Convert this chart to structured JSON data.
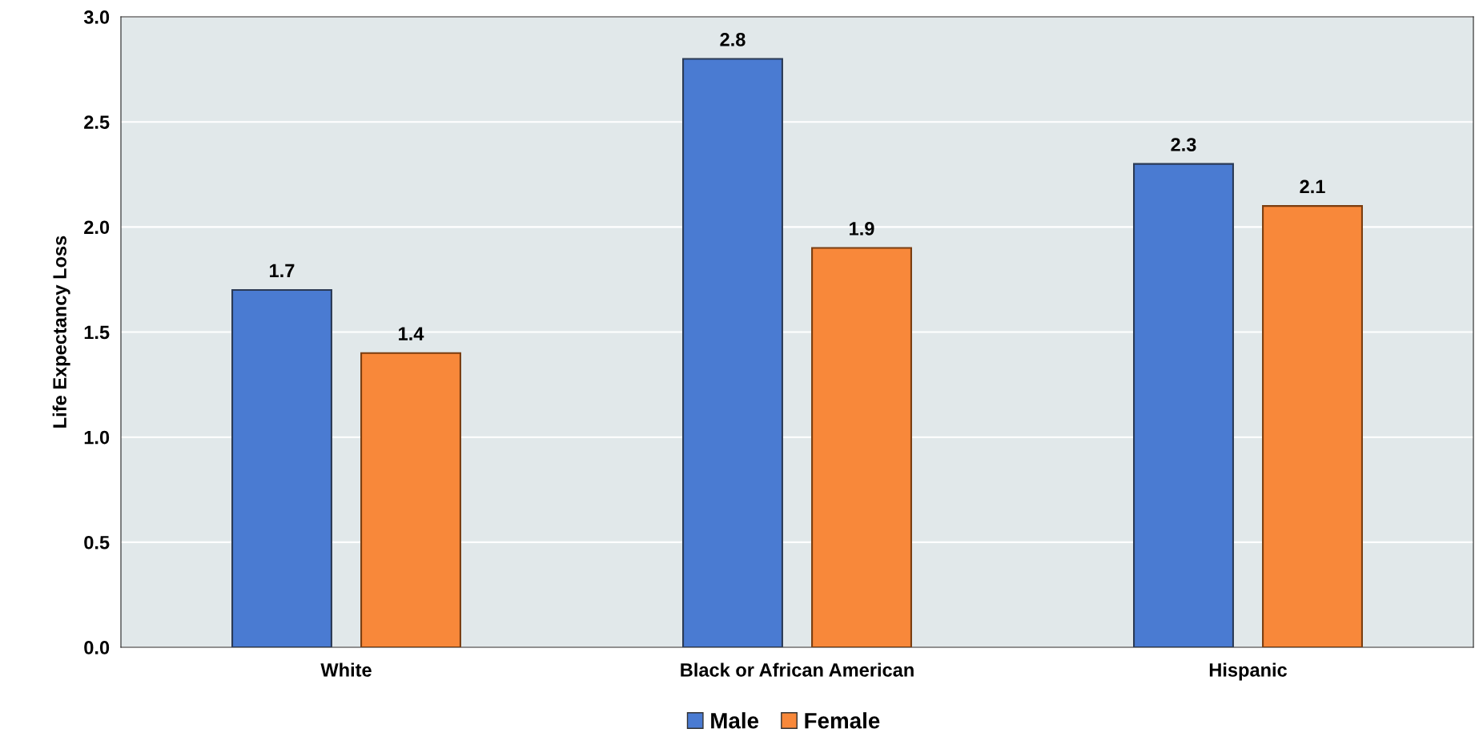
{
  "chart_data": {
    "type": "bar",
    "ylabel": "Life Expectancy Loss",
    "categories": [
      "White",
      "Black or African American",
      "Hispanic"
    ],
    "series": [
      {
        "name": "Male",
        "color": "#4a7bd2",
        "values": [
          1.7,
          2.8,
          2.3
        ]
      },
      {
        "name": "Female",
        "color": "#f8883a",
        "values": [
          1.4,
          1.9,
          2.1
        ]
      }
    ],
    "ylim": [
      0,
      3
    ],
    "yticks": [
      {
        "value": 0,
        "label": "0.0"
      },
      {
        "value": 0.5,
        "label": "0.5"
      },
      {
        "value": 1,
        "label": "1.0"
      },
      {
        "value": 1.5,
        "label": "1.5"
      },
      {
        "value": 2,
        "label": "2.0"
      },
      {
        "value": 2.5,
        "label": "2.5"
      },
      {
        "value": 3,
        "label": "3.0"
      }
    ],
    "grid": "y",
    "legend": "bottom",
    "data_labels": true
  }
}
